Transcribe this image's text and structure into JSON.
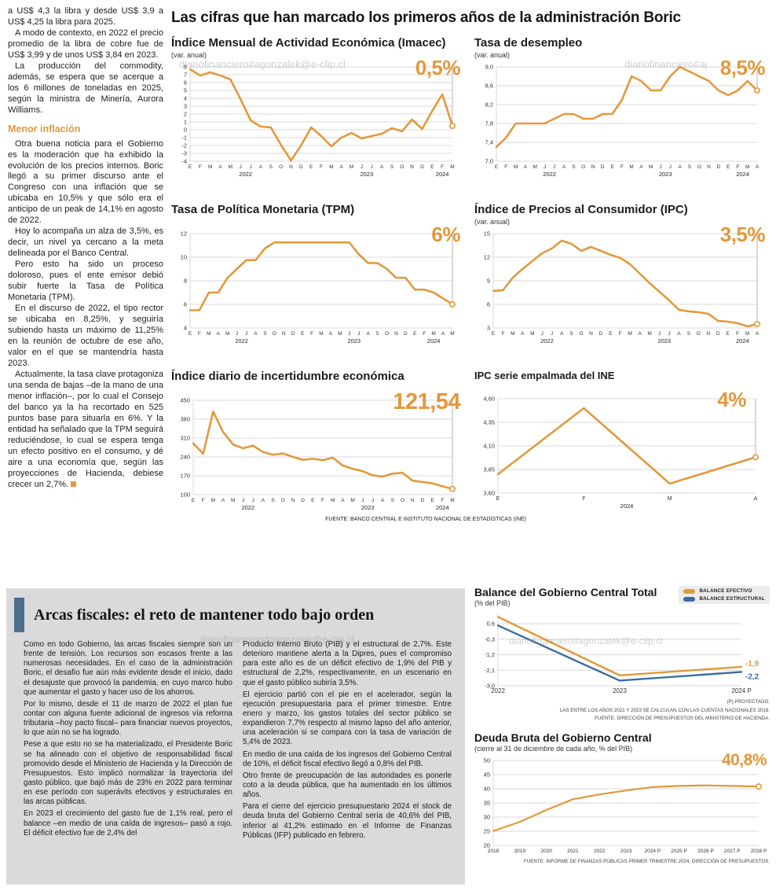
{
  "headline": "Las cifras que han marcado los primeros años de la administración Boric",
  "watermark": "diariofinanciero#agonzalek@e-clip.cl",
  "colors": {
    "orange": "#E2993B",
    "blue": "#3C6E9F",
    "grid": "#d9d9d9"
  },
  "article": {
    "paragraphs": [
      "a US$ 4,3 la libra y desde US$ 3,9 a US$ 4,25 la libra para 2025.",
      "A modo de contexto, en 2022 el precio promedio de la libra de cobre fue de US$ 3,99 y de unos US$ 3,84 en 2023.",
      "La producción del commodity, además, se espera que se acerque a los 6 millones de toneladas en 2025, según la ministra de Minería, Aurora Williams."
    ],
    "subheading": "Menor inflación",
    "paragraphs2": [
      "Otra buena noticia para el Gobierno es la moderación que ha exhibido la evolución de los precios internos. Boric llegó a su primer discurso ante el Congreso con una inflación que se ubicaba en 10,5% y que sólo era el anticipo de un peak de 14,1% en agosto de 2022.",
      "Hoy lo acompaña un alza de 3,5%, es decir, un nivel ya cercano a la meta delineada por el Banco Central.",
      "Pero esto ha sido un proceso doloroso, pues el ente emisor debió subir fuerte la Tasa de Política Monetaria (TPM).",
      "En el discurso de 2022, el tipo rector se ubicaba en 8,25%, y seguiría subiendo hasta un máximo de 11,25% en la reunión de octubre de ese año, valor en el que se mantendría hasta 2023.",
      "Actualmente, la tasa clave protagoniza una senda de bajas –de la mano de una menor inflación–, por lo cual el Consejo del banco ya la ha recortado en 525 puntos base para situarla en 6%. Y la entidad ha señalado que la TPM seguirá reduciéndose, lo cual se espera tenga un efecto positivo en el consumo, y dé aire a una economía que, según las proyecciones de Hacienda, debiese crecer un 2,7%."
    ]
  },
  "charts_source": "FUENTE: BANCO CENTRAL E INSTITUTO NACIONAL DE ESTADÍSTICAS (INE)",
  "fiscal": {
    "title": "Arcas fiscales: el reto de mantener todo bajo orden",
    "col1": [
      "Como en todo Gobierno, las arcas fiscales siempre son un frente de tensión. Los recursos son escasos frente a las numerosas necesidades. En el caso de la administración Boric, el desafío fue aún más evidente desde el inicio, dado el desajuste que provocó la pandemia, en cuyo marco hubo que aumentar el gasto y hacer uso de los ahorros.",
      "Por lo mismo, desde el 11 de marzo de 2022 el plan fue contar con alguna fuente adicional de ingresos vía reforma tributaria –hoy pacto fiscal– para financiar nuevos proyectos, lo que aún no se ha logrado.",
      "Pese a que esto no se ha materializado, el Presidente Boric se ha alineado con el objetivo de responsabilidad fiscal promovido desde el Ministerio de Hacienda y la Dirección de Presupuestos. Esto implicó normalizar la trayectoria del gasto público, que bajó más de 23% en 2022 para terminar en ese período con superávits efectivos y estructurales en las arcas públicas.",
      "En 2023 el crecimiento del gasto fue de 1,1% real, pero el balance –en medio de una caída de ingresos– pasó a rojo. El déficit efectivo fue de 2,4% del"
    ],
    "col2": [
      "Producto Interno Bruto (PIB) y el estructural de 2,7%. Este deterioro mantiene alerta a la Dipres, pues el compromiso para este año es de un déficit efectivo de 1,9% del PIB y estructural de 2,2%, respectivamente, en un escenario en que el gasto público subiría 3,5%.",
      "El ejercicio partió con el pie en el acelerador, según la ejecución presupuestaria para el primer trimestre. Entre enero y marzo, los gastos totales del sector público se expandieron 7,7% respecto al mismo lapso del año anterior, una aceleración si se compara con la tasa de variación de 5,4% de 2023.",
      "En medio de una caída de los ingresos del Gobierno Central de 10%, el déficit fiscal efectivo llegó a 0,8% del PIB.",
      "Otro frente de preocupación de las autoridades es ponerle coto a la deuda pública, que ha aumentado en los últimos años.",
      "Para el cierre del ejercicio presupuestario 2024 el stock de deuda bruta del Gobierno Central sería de 40,6% del PIB, inferior al 41,2% estimado en el Informe de Finanzas Públicas (IFP) publicado en febrero."
    ]
  },
  "balance_notes": [
    "(P) PROYECTADO.",
    "LAS ENTRE LOS AÑOS 2021 Y 2023 SE CALCULAN CON LAS CUENTAS NACIONALES 2018.",
    "FUENTE: DIRECCIÓN DE PRESUPUESTOS DEL MINISTERIO DE HACIENDA."
  ],
  "deuda_note": "FUENTE: INFORME DE FINANZAS PÚBLICAS PRIMER TRIMESTRE 2024, DIRECCIÓN DE PRESUPUESTOS.",
  "chart_data": [
    {
      "id": "imacec",
      "type": "line",
      "title": "Índice Mensual de Actividad Económica (Imacec)",
      "subtitle": "(var. anual)",
      "big_label": "0,5%",
      "y_min": -4,
      "y_max": 8,
      "y_ticks": [
        8,
        7,
        6,
        5,
        4,
        3,
        2,
        1,
        0,
        -1,
        -2,
        -3,
        -4
      ],
      "y_tick_labels": [
        "8",
        "7",
        "6",
        "5",
        "4",
        "3",
        "2",
        "1",
        "0",
        "-1",
        "-2",
        "-3",
        "-4"
      ],
      "x_labels": [
        "E",
        "F",
        "M",
        "A",
        "M",
        "J",
        "J",
        "A",
        "S",
        "O",
        "N",
        "D",
        "E",
        "F",
        "M",
        "A",
        "M",
        "J",
        "J",
        "A",
        "S",
        "O",
        "N",
        "D",
        "E",
        "F",
        "M"
      ],
      "years": [
        {
          "label": "2022",
          "from": 0,
          "to": 11
        },
        {
          "label": "2023",
          "from": 12,
          "to": 23
        },
        {
          "label": "2024",
          "from": 24,
          "to": 26
        }
      ],
      "pointer": true,
      "series": [
        {
          "name": "Imacec",
          "color": "orange",
          "end_marker": true,
          "values": [
            7.7,
            6.9,
            7.3,
            6.9,
            6.4,
            3.9,
            1.2,
            0.4,
            0.3,
            -1.9,
            -3.9,
            -2.0,
            0.3,
            -0.8,
            -2.1,
            -1.0,
            -0.4,
            -1.1,
            -0.8,
            -0.5,
            0.2,
            -0.2,
            1.3,
            0.1,
            2.4,
            4.5,
            0.5
          ]
        }
      ]
    },
    {
      "id": "desempleo",
      "type": "line",
      "title": "Tasa de desempleo",
      "subtitle": "(var. anual)",
      "big_label": "8,5%",
      "y_min": 7.0,
      "y_max": 9.0,
      "y_ticks": [
        9.0,
        8.6,
        8.2,
        7.8,
        7.4,
        7.0
      ],
      "y_tick_labels": [
        "9,0",
        "8,6",
        "8,2",
        "7,8",
        "7,4",
        "7,0"
      ],
      "x_labels": [
        "E",
        "F",
        "M",
        "A",
        "M",
        "J",
        "J",
        "A",
        "S",
        "O",
        "N",
        "D",
        "E",
        "F",
        "M",
        "A",
        "M",
        "J",
        "J",
        "A",
        "S",
        "O",
        "N",
        "D",
        "E",
        "F",
        "M",
        "A"
      ],
      "years": [
        {
          "label": "2022",
          "from": 0,
          "to": 11
        },
        {
          "label": "2023",
          "from": 12,
          "to": 23
        },
        {
          "label": "2024",
          "from": 24,
          "to": 27
        }
      ],
      "pointer": true,
      "series": [
        {
          "name": "Tasa de desempleo",
          "color": "orange",
          "end_marker": true,
          "values": [
            7.3,
            7.5,
            7.8,
            7.8,
            7.8,
            7.8,
            7.9,
            8.0,
            8.0,
            7.9,
            7.9,
            8.0,
            8.0,
            8.3,
            8.8,
            8.7,
            8.5,
            8.5,
            8.8,
            9.0,
            8.9,
            8.8,
            8.7,
            8.5,
            8.4,
            8.5,
            8.7,
            8.5
          ]
        }
      ]
    },
    {
      "id": "tpm",
      "type": "line",
      "title": "Tasa de Política Monetaria (TPM)",
      "subtitle": "",
      "big_label": "6%",
      "y_min": 4,
      "y_max": 12,
      "y_ticks": [
        12,
        10,
        8,
        6,
        4
      ],
      "y_tick_labels": [
        "12",
        "10",
        "8",
        "6",
        "4"
      ],
      "x_labels": [
        "E",
        "F",
        "M",
        "A",
        "M",
        "J",
        "J",
        "A",
        "S",
        "O",
        "N",
        "D",
        "E",
        "F",
        "M",
        "A",
        "M",
        "J",
        "J",
        "A",
        "S",
        "O",
        "N",
        "D",
        "E",
        "F",
        "M",
        "A",
        "M"
      ],
      "years": [
        {
          "label": "2022",
          "from": 0,
          "to": 11
        },
        {
          "label": "2023",
          "from": 12,
          "to": 23
        },
        {
          "label": "2024",
          "from": 24,
          "to": 28
        }
      ],
      "pointer": true,
      "series": [
        {
          "name": "TPM",
          "color": "orange",
          "end_marker": true,
          "values": [
            5.5,
            5.5,
            7.0,
            7.0,
            8.25,
            9.0,
            9.75,
            9.75,
            10.75,
            11.25,
            11.25,
            11.25,
            11.25,
            11.25,
            11.25,
            11.25,
            11.25,
            11.25,
            10.25,
            9.5,
            9.5,
            9.0,
            8.25,
            8.25,
            7.25,
            7.25,
            7.0,
            6.5,
            6.0
          ]
        }
      ]
    },
    {
      "id": "ipc",
      "type": "line",
      "title": "Índice de Precios al Consumidor (IPC)",
      "subtitle": "(var. anual)",
      "big_label": "3,5%",
      "y_min": 3,
      "y_max": 15,
      "y_ticks": [
        15,
        12,
        9,
        6,
        3
      ],
      "y_tick_labels": [
        "15",
        "12",
        "9",
        "6",
        "3"
      ],
      "x_labels": [
        "E",
        "F",
        "M",
        "A",
        "M",
        "J",
        "J",
        "A",
        "S",
        "O",
        "N",
        "D",
        "E",
        "F",
        "M",
        "A",
        "M",
        "J",
        "J",
        "A",
        "S",
        "O",
        "N",
        "D",
        "E",
        "F",
        "M",
        "A"
      ],
      "years": [
        {
          "label": "2022",
          "from": 0,
          "to": 11
        },
        {
          "label": "2023",
          "from": 12,
          "to": 23
        },
        {
          "label": "2024",
          "from": 24,
          "to": 27
        }
      ],
      "pointer": true,
      "series": [
        {
          "name": "IPC",
          "color": "orange",
          "end_marker": true,
          "values": [
            7.7,
            7.8,
            9.4,
            10.5,
            11.5,
            12.5,
            13.1,
            14.1,
            13.7,
            12.8,
            13.3,
            12.8,
            12.3,
            11.9,
            11.1,
            9.9,
            8.7,
            7.6,
            6.5,
            5.3,
            5.1,
            5.0,
            4.8,
            3.9,
            3.8,
            3.6,
            3.2,
            3.5
          ]
        }
      ]
    },
    {
      "id": "incertidumbre",
      "type": "line",
      "title": "Índice diario de incertidumbre económica",
      "subtitle": "",
      "big_label": "121,54",
      "y_min": 100,
      "y_max": 450,
      "y_ticks": [
        450,
        380,
        310,
        240,
        170,
        100
      ],
      "y_tick_labels": [
        "450",
        "380",
        "310",
        "240",
        "170",
        "100"
      ],
      "x_labels": [
        "E",
        "F",
        "M",
        "A",
        "M",
        "J",
        "J",
        "A",
        "S",
        "O",
        "N",
        "D",
        "E",
        "F",
        "M",
        "A",
        "M",
        "J",
        "J",
        "A",
        "S",
        "O",
        "N",
        "D",
        "E",
        "F",
        "M"
      ],
      "years": [
        {
          "label": "2022",
          "from": 0,
          "to": 11
        },
        {
          "label": "2023",
          "from": 12,
          "to": 23
        },
        {
          "label": "2024",
          "from": 24,
          "to": 26
        }
      ],
      "pointer": true,
      "series": [
        {
          "name": "Incertidumbre económica",
          "color": "orange",
          "end_marker": true,
          "values": [
            290,
            252,
            408,
            332,
            286,
            272,
            282,
            258,
            248,
            253,
            240,
            229,
            233,
            228,
            237,
            208,
            196,
            187,
            172,
            167,
            178,
            181,
            152,
            147,
            142,
            131,
            121.54
          ]
        }
      ]
    },
    {
      "id": "ipc_ine",
      "type": "line",
      "title": "IPC serie empalmada del INE",
      "subtitle": "",
      "big_label": "4%",
      "y_min": 3.6,
      "y_max": 4.6,
      "y_ticks": [
        4.6,
        4.35,
        4.1,
        3.85,
        3.6
      ],
      "y_tick_labels": [
        "4,60",
        "4,35",
        "4,10",
        "3,85",
        "3,60"
      ],
      "x_labels": [
        "E",
        "F",
        "M",
        "A"
      ],
      "years": [
        {
          "label": "2024",
          "from": 0,
          "to": 3
        }
      ],
      "pointer": true,
      "series": [
        {
          "name": "IPC serie empalmada",
          "color": "orange",
          "end_marker": true,
          "values": [
            3.8,
            4.5,
            3.7,
            3.98
          ]
        }
      ]
    },
    {
      "id": "balance",
      "type": "line",
      "title": "Balance del Gobierno Central Total",
      "subtitle": "(% del PIB)",
      "y_min": -3.0,
      "y_max": 1.2,
      "y_ticks": [
        0.6,
        -0.3,
        -1.2,
        -2.1,
        -3.0
      ],
      "y_tick_labels": [
        "0,6",
        "-0,3",
        "-1,2",
        "-2,1",
        "-3,0"
      ],
      "x_labels": [
        "2022",
        "2023",
        "2024 P"
      ],
      "years": [],
      "pointer": false,
      "series": [
        {
          "name": "BALANCE EFECTIVO",
          "color": "orange",
          "width": 2.4,
          "end_label": "-1,9",
          "end_label_dy": -1,
          "values": [
            1.0,
            -2.4,
            -1.9
          ]
        },
        {
          "name": "BALANCE ESTRUCTURAL",
          "color": "blue",
          "width": 2.4,
          "end_label": "-2,2",
          "end_label_dy": 9,
          "values": [
            0.5,
            -2.7,
            -2.2
          ]
        }
      ]
    },
    {
      "id": "deuda",
      "type": "line",
      "title": "Deuda Bruta del Gobierno Central",
      "subtitle": "(cierre al 31 de diciembre de cada año, % del PIB)",
      "big_label": "40,8%",
      "y_min": 20,
      "y_max": 50,
      "y_ticks": [
        50,
        45,
        40,
        35,
        30,
        25,
        20
      ],
      "y_tick_labels": [
        "50",
        "45",
        "40",
        "35",
        "30",
        "25",
        "20"
      ],
      "x_labels": [
        "2018",
        "2019",
        "2020",
        "2021",
        "2022",
        "2023",
        "2024 P",
        "2025 P",
        "2026 P",
        "2027 P",
        "2028 P"
      ],
      "years": [],
      "pointer": false,
      "series": [
        {
          "name": "Deuda bruta",
          "color": "orange",
          "width": 2.2,
          "end_marker": true,
          "values": [
            25.1,
            28.3,
            32.5,
            36.3,
            38.0,
            39.4,
            40.6,
            41.0,
            41.2,
            41.0,
            40.8
          ]
        }
      ]
    }
  ]
}
